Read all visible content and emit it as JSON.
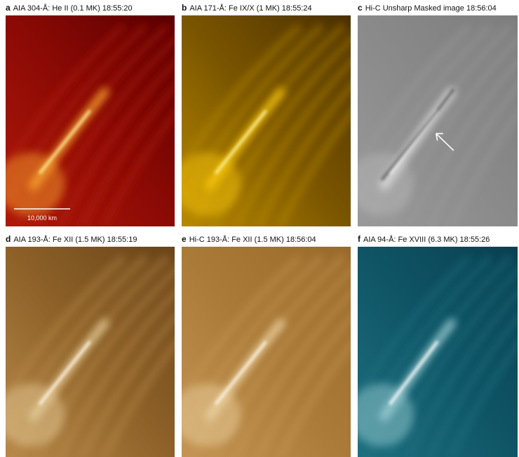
{
  "panels": [
    {
      "letter": "a",
      "title": "AIA 304-Å: He II (0.1 MK) 18:55:20",
      "scale_bar": "10,000 km"
    },
    {
      "letter": "b",
      "title": "AIA 171-Å: Fe IX/X (1 MK) 18:55:24"
    },
    {
      "letter": "c",
      "title": "Hi-C Unsharp Masked image 18:56:04"
    },
    {
      "letter": "d",
      "title": "AIA 193-Å: Fe XII (1.5 MK) 18:55:19"
    },
    {
      "letter": "e",
      "title": "Hi-C 193-Å: Fe XII (1.5 MK) 18:56:04"
    },
    {
      "letter": "f",
      "title": "AIA 94-Å: Fe XVIII (6.3 MK) 18:55:26"
    }
  ]
}
